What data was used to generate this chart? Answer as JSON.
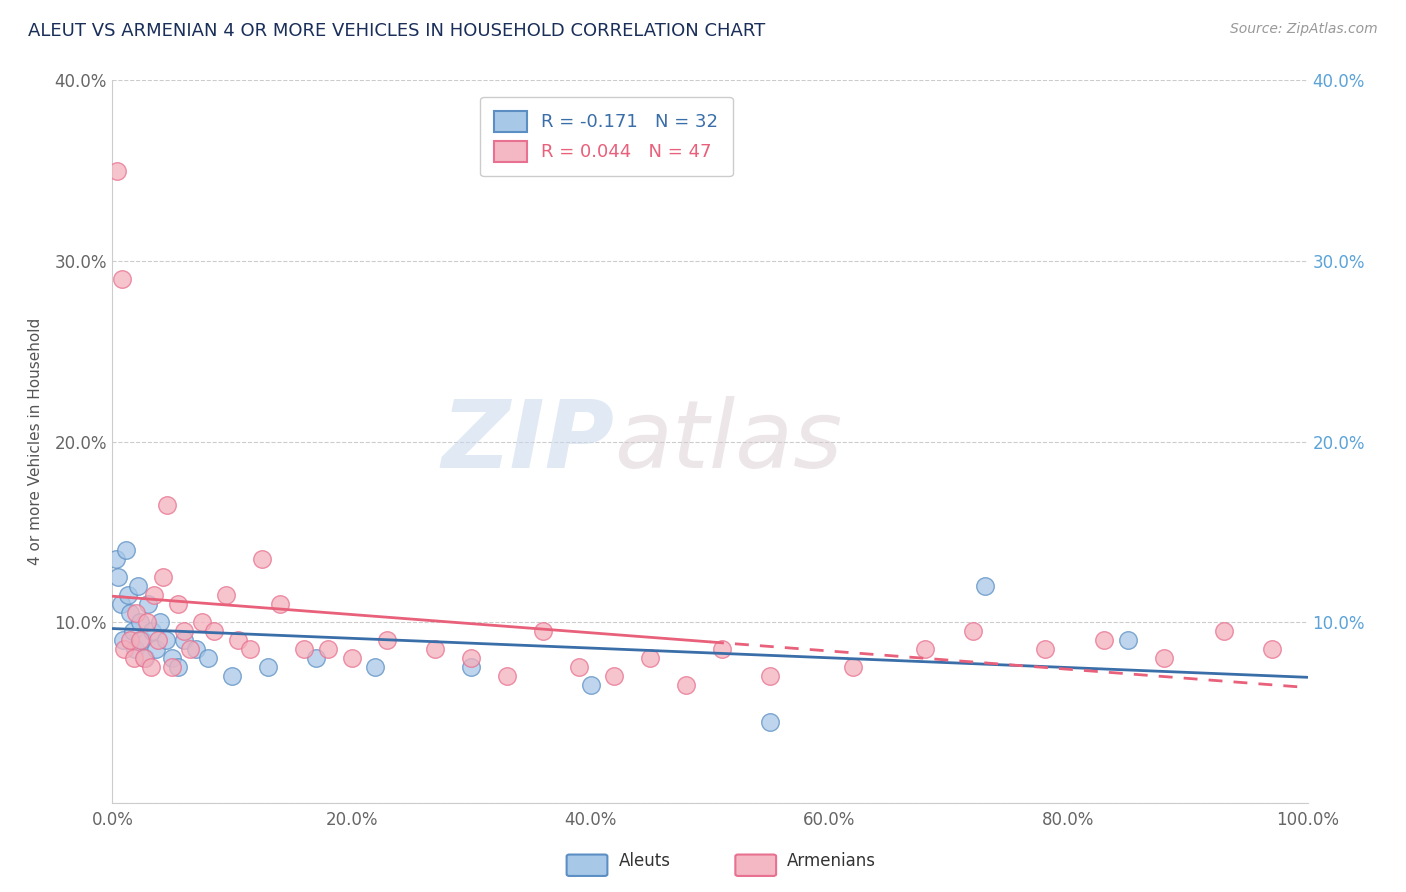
{
  "title": "ALEUT VS ARMENIAN 4 OR MORE VEHICLES IN HOUSEHOLD CORRELATION CHART",
  "source_text": "Source: ZipAtlas.com",
  "ylabel": "4 or more Vehicles in Household",
  "xlim": [
    0,
    100
  ],
  "ylim": [
    0,
    40
  ],
  "xticks": [
    0,
    20,
    40,
    60,
    80,
    100
  ],
  "xticklabels": [
    "0.0%",
    "20.0%",
    "40.0%",
    "60.0%",
    "80.0%",
    "100.0%"
  ],
  "yticks": [
    0,
    10,
    20,
    30,
    40
  ],
  "yticklabels": [
    "",
    "10.0%",
    "20.0%",
    "30.0%",
    "40.0%"
  ],
  "right_yticklabels": [
    "",
    "10.0%",
    "20.0%",
    "30.0%",
    "40.0%"
  ],
  "aleuts_color": "#a8c8e8",
  "armenians_color": "#f4b0bc",
  "aleuts_edge_color": "#5b8fc4",
  "armenians_edge_color": "#e87090",
  "aleuts_line_color": "#3a6ea8",
  "armenians_line_color": "#e8607a",
  "legend_R_aleuts": "R = -0.171",
  "legend_N_aleuts": "N = 32",
  "legend_R_armenians": "R = 0.044",
  "legend_N_armenians": "N = 47",
  "aleuts_x": [
    0.3,
    0.5,
    0.7,
    0.9,
    1.1,
    1.3,
    1.5,
    1.7,
    1.9,
    2.1,
    2.3,
    2.5,
    2.7,
    3.0,
    3.3,
    3.6,
    4.0,
    4.5,
    5.0,
    5.5,
    6.0,
    7.0,
    8.0,
    10.0,
    13.0,
    17.0,
    22.0,
    30.0,
    40.0,
    55.0,
    73.0,
    85.0
  ],
  "aleuts_y": [
    13.5,
    12.5,
    11.0,
    9.0,
    14.0,
    11.5,
    10.5,
    9.5,
    8.5,
    12.0,
    10.0,
    9.0,
    8.0,
    11.0,
    9.5,
    8.5,
    10.0,
    9.0,
    8.0,
    7.5,
    9.0,
    8.5,
    8.0,
    7.0,
    7.5,
    8.0,
    7.5,
    7.5,
    6.5,
    4.5,
    12.0,
    9.0
  ],
  "armenians_x": [
    0.4,
    0.8,
    1.0,
    1.5,
    1.8,
    2.0,
    2.3,
    2.6,
    2.9,
    3.2,
    3.5,
    3.8,
    4.2,
    4.6,
    5.0,
    5.5,
    6.0,
    6.5,
    7.5,
    8.5,
    9.5,
    10.5,
    11.5,
    12.5,
    14.0,
    16.0,
    18.0,
    20.0,
    23.0,
    27.0,
    30.0,
    33.0,
    36.0,
    39.0,
    42.0,
    45.0,
    48.0,
    51.0,
    55.0,
    62.0,
    68.0,
    72.0,
    78.0,
    83.0,
    88.0,
    93.0,
    97.0
  ],
  "armenians_y": [
    35.0,
    29.0,
    8.5,
    9.0,
    8.0,
    10.5,
    9.0,
    8.0,
    10.0,
    7.5,
    11.5,
    9.0,
    12.5,
    16.5,
    7.5,
    11.0,
    9.5,
    8.5,
    10.0,
    9.5,
    11.5,
    9.0,
    8.5,
    13.5,
    11.0,
    8.5,
    8.5,
    8.0,
    9.0,
    8.5,
    8.0,
    7.0,
    9.5,
    7.5,
    7.0,
    8.0,
    6.5,
    8.5,
    7.0,
    7.5,
    8.5,
    9.5,
    8.5,
    9.0,
    8.0,
    9.5,
    8.5
  ],
  "background_color": "#ffffff",
  "grid_color": "#cccccc",
  "watermark_zip": "ZIP",
  "watermark_atlas": "atlas",
  "legend_box_aleuts": "#a8c8e8",
  "legend_box_armenians": "#f4b8c4"
}
